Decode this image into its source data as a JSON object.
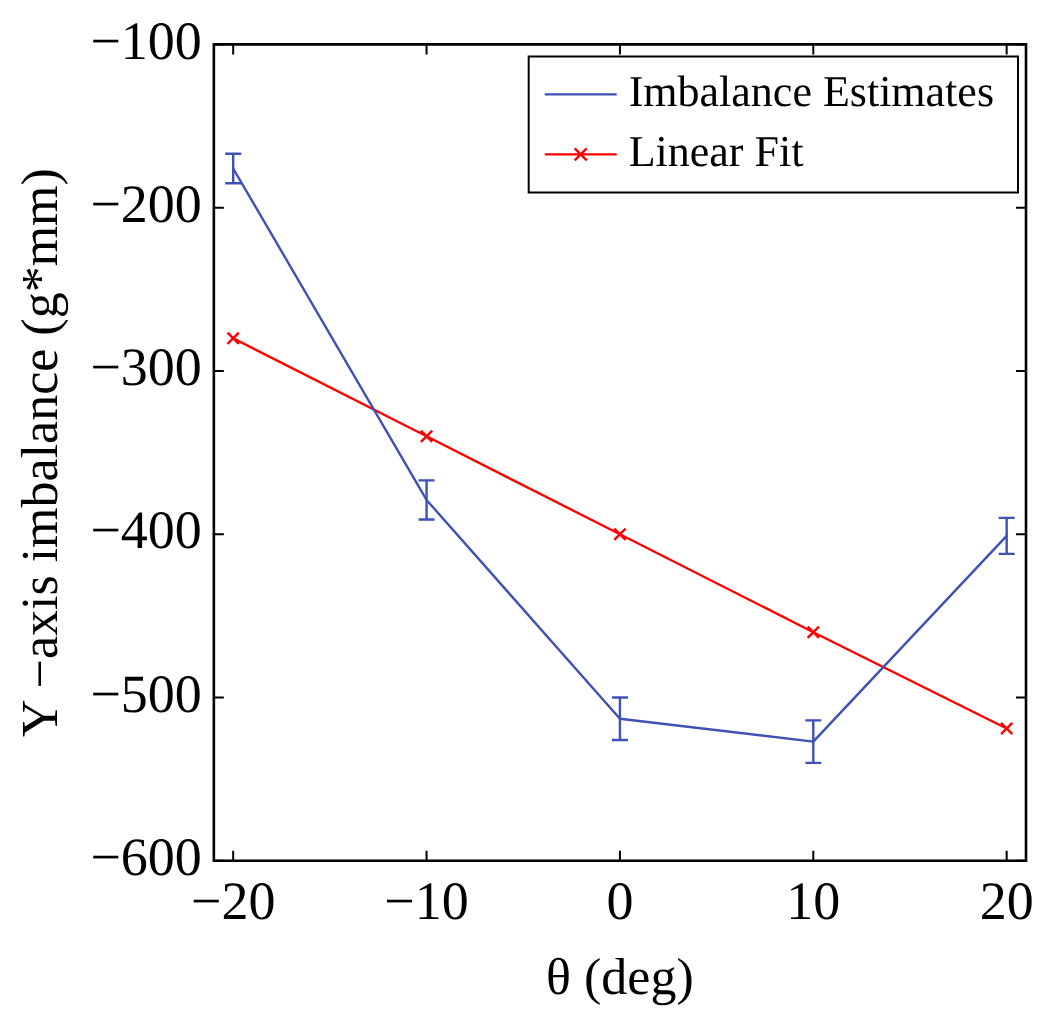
{
  "chart_data": {
    "type": "line",
    "xlabel": "θ (deg)",
    "ylabel": "Y −axis imbalance (g*mm)",
    "x": [
      -20,
      -10,
      0,
      10,
      20
    ],
    "series": [
      {
        "name": "Imbalance Estimates",
        "color": "#3f51b5",
        "values": [
          -176,
          -379,
          -513,
          -527,
          -401
        ],
        "errors": [
          9,
          12,
          13,
          13,
          11
        ],
        "marker": "none"
      },
      {
        "name": "Linear Fit",
        "color": "#ff0000",
        "values": [
          -280,
          -340,
          -400,
          -460,
          -519
        ],
        "marker": "cross"
      }
    ],
    "xlim": [
      -21,
      21
    ],
    "xticks": [
      -20,
      -10,
      0,
      10,
      20
    ],
    "ylim": [
      -600,
      -100
    ],
    "yticks": [
      -600,
      -500,
      -400,
      -300,
      -200,
      -100
    ],
    "grid": false,
    "legend": "top right",
    "line_style": "solid"
  }
}
